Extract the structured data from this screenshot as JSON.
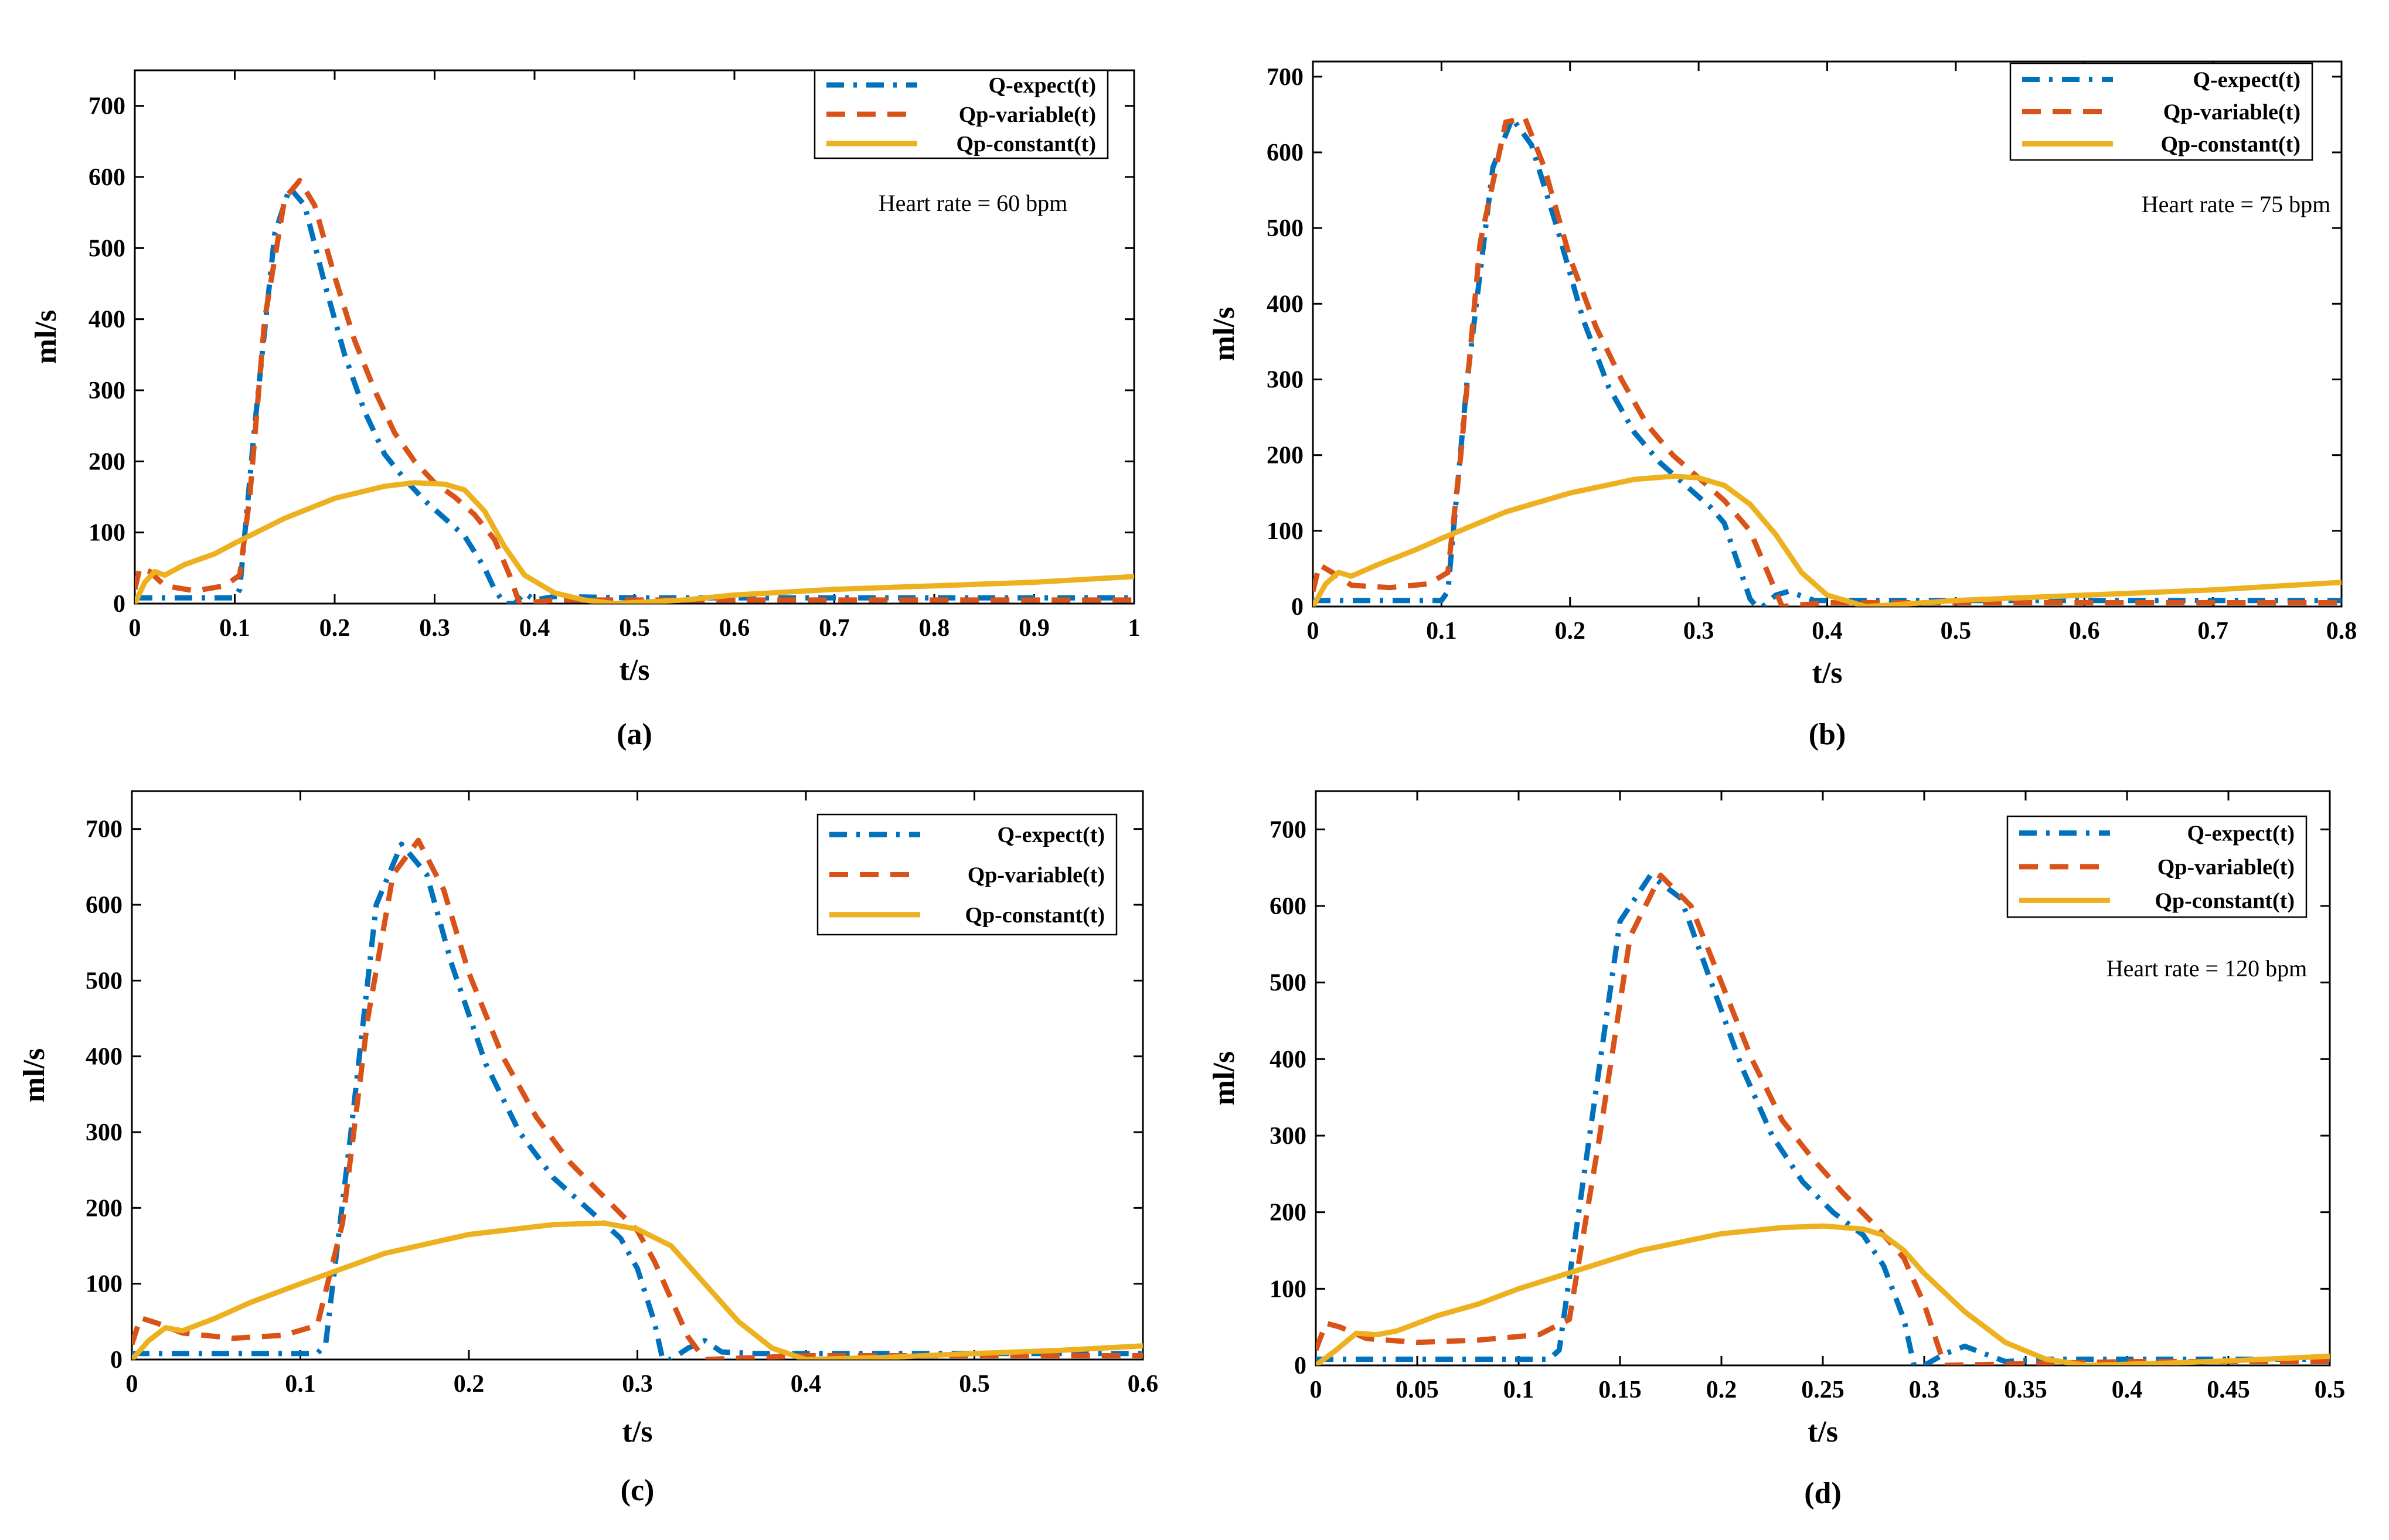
{
  "colors": {
    "q_expect": "#0072BD",
    "qp_variable": "#D95319",
    "qp_constant": "#EDB120"
  },
  "chart_data": [
    {
      "type": "line",
      "caption": "(a)",
      "xlabel": "t/s",
      "ylabel": "ml/s",
      "annotation": "Heart rate = 60 bpm",
      "xlim": [
        0,
        1
      ],
      "ylim": [
        0,
        750
      ],
      "xticks": [
        0,
        0.1,
        0.2,
        0.3,
        0.4,
        0.5,
        0.6,
        0.7,
        0.8,
        0.9,
        1
      ],
      "xtick_labels": [
        "0",
        "0.1",
        "0.2",
        "0.3",
        "0.4",
        "0.5",
        "0.6",
        "0.7",
        "0.8",
        "0.9",
        "1"
      ],
      "yticks": [
        0,
        100,
        200,
        300,
        400,
        500,
        600,
        700
      ],
      "ytick_labels": [
        "0",
        "100",
        "200",
        "300",
        "400",
        "500",
        "600",
        "700"
      ],
      "legend_position": "top-right",
      "series": [
        {
          "name": "Q-expect(t)",
          "style": "dashdot",
          "color_key": "q_expect",
          "x": [
            0,
            0.1,
            0.105,
            0.12,
            0.14,
            0.155,
            0.17,
            0.19,
            0.21,
            0.23,
            0.25,
            0.27,
            0.29,
            0.31,
            0.33,
            0.35,
            0.36,
            0.37,
            0.38,
            0.39,
            0.4,
            0.42,
            0.5,
            0.6,
            0.7,
            0.8,
            0.9,
            1.0
          ],
          "y": [
            8,
            8,
            20,
            250,
            520,
            585,
            560,
            450,
            350,
            270,
            210,
            175,
            145,
            120,
            95,
            50,
            20,
            0,
            0,
            15,
            5,
            10,
            8,
            8,
            8,
            8,
            8,
            8
          ]
        },
        {
          "name": "Qp-variable(t)",
          "style": "dashed",
          "color_key": "qp_variable",
          "x": [
            0,
            0.005,
            0.015,
            0.03,
            0.06,
            0.09,
            0.105,
            0.115,
            0.13,
            0.15,
            0.165,
            0.18,
            0.2,
            0.22,
            0.24,
            0.26,
            0.28,
            0.3,
            0.32,
            0.34,
            0.36,
            0.375,
            0.385,
            0.42,
            0.5,
            0.6,
            0.7,
            0.8,
            0.9,
            1.0
          ],
          "y": [
            20,
            50,
            45,
            25,
            18,
            25,
            40,
            150,
            400,
            570,
            595,
            560,
            460,
            370,
            300,
            240,
            200,
            170,
            150,
            125,
            90,
            40,
            0,
            5,
            5,
            5,
            5,
            5,
            5,
            5
          ]
        },
        {
          "name": "Qp-constant(t)",
          "style": "solid",
          "color_key": "qp_constant",
          "x": [
            0,
            0.01,
            0.02,
            0.03,
            0.05,
            0.08,
            0.1,
            0.15,
            0.2,
            0.25,
            0.28,
            0.31,
            0.33,
            0.35,
            0.37,
            0.39,
            0.42,
            0.45,
            0.48,
            0.55,
            0.6,
            0.7,
            0.8,
            0.9,
            1.0
          ],
          "y": [
            0,
            30,
            45,
            40,
            55,
            70,
            85,
            120,
            148,
            165,
            170,
            168,
            160,
            130,
            80,
            40,
            15,
            5,
            0,
            5,
            12,
            20,
            25,
            30,
            38
          ]
        }
      ]
    },
    {
      "type": "line",
      "caption": "(b)",
      "xlabel": "t/s",
      "ylabel": "ml/s",
      "annotation": "Heart rate = 75 bpm",
      "xlim": [
        0,
        0.8
      ],
      "ylim": [
        0,
        720
      ],
      "xticks": [
        0,
        0.1,
        0.2,
        0.3,
        0.4,
        0.5,
        0.6,
        0.7,
        0.8
      ],
      "xtick_labels": [
        "0",
        "0.1",
        "0.2",
        "0.3",
        "0.4",
        "0.5",
        "0.6",
        "0.7",
        "0.8"
      ],
      "yticks": [
        0,
        100,
        200,
        300,
        400,
        500,
        600,
        700
      ],
      "ytick_labels": [
        "0",
        "100",
        "200",
        "300",
        "400",
        "500",
        "600",
        "700"
      ],
      "legend_position": "top-right",
      "series": [
        {
          "name": "Q-expect(t)",
          "style": "dashdot",
          "color_key": "q_expect",
          "x": [
            0,
            0.1,
            0.105,
            0.12,
            0.14,
            0.155,
            0.17,
            0.19,
            0.21,
            0.23,
            0.25,
            0.27,
            0.29,
            0.31,
            0.32,
            0.33,
            0.34,
            0.345,
            0.35,
            0.36,
            0.37,
            0.39,
            0.5,
            0.6,
            0.7,
            0.8
          ],
          "y": [
            8,
            8,
            20,
            300,
            580,
            645,
            610,
            500,
            380,
            290,
            230,
            190,
            160,
            130,
            110,
            60,
            10,
            0,
            0,
            15,
            20,
            8,
            8,
            8,
            8,
            8
          ]
        },
        {
          "name": "Qp-variable(t)",
          "style": "dashed",
          "color_key": "qp_variable",
          "x": [
            0,
            0.005,
            0.015,
            0.03,
            0.06,
            0.09,
            0.105,
            0.115,
            0.13,
            0.15,
            0.165,
            0.18,
            0.2,
            0.22,
            0.24,
            0.26,
            0.28,
            0.3,
            0.32,
            0.34,
            0.355,
            0.365,
            0.4,
            0.5,
            0.6,
            0.7,
            0.8
          ],
          "y": [
            20,
            55,
            45,
            28,
            25,
            30,
            45,
            200,
            480,
            640,
            645,
            580,
            460,
            370,
            300,
            240,
            200,
            170,
            140,
            100,
            40,
            0,
            5,
            5,
            5,
            5,
            5
          ]
        },
        {
          "name": "Qp-constant(t)",
          "style": "solid",
          "color_key": "qp_constant",
          "x": [
            0,
            0.01,
            0.02,
            0.03,
            0.05,
            0.08,
            0.1,
            0.15,
            0.2,
            0.25,
            0.28,
            0.3,
            0.32,
            0.34,
            0.36,
            0.38,
            0.4,
            0.43,
            0.45,
            0.5,
            0.6,
            0.7,
            0.8
          ],
          "y": [
            0,
            30,
            45,
            40,
            55,
            75,
            90,
            125,
            150,
            168,
            172,
            170,
            160,
            135,
            95,
            45,
            15,
            0,
            2,
            8,
            15,
            22,
            32
          ]
        }
      ]
    },
    {
      "type": "line",
      "caption": "(c)",
      "xlabel": "t/s",
      "ylabel": "ml/s",
      "annotation": "",
      "xlim": [
        0,
        0.6
      ],
      "ylim": [
        0,
        750
      ],
      "xticks": [
        0,
        0.1,
        0.2,
        0.3,
        0.4,
        0.5,
        0.6
      ],
      "xtick_labels": [
        "0",
        "0.1",
        "0.2",
        "0.3",
        "0.4",
        "0.5",
        "0.6"
      ],
      "yticks": [
        0,
        100,
        200,
        300,
        400,
        500,
        600,
        700
      ],
      "ytick_labels": [
        "0",
        "100",
        "200",
        "300",
        "400",
        "500",
        "600",
        "700"
      ],
      "legend_position": "top-right",
      "series": [
        {
          "name": "Q-expect(t)",
          "style": "dashdot",
          "color_key": "q_expect",
          "x": [
            0,
            0.11,
            0.115,
            0.13,
            0.145,
            0.16,
            0.175,
            0.19,
            0.21,
            0.23,
            0.25,
            0.27,
            0.29,
            0.3,
            0.31,
            0.315,
            0.32,
            0.33,
            0.34,
            0.35,
            0.37,
            0.4,
            0.5,
            0.6
          ],
          "y": [
            8,
            8,
            20,
            300,
            600,
            680,
            640,
            520,
            390,
            300,
            240,
            200,
            160,
            120,
            50,
            0,
            0,
            15,
            25,
            10,
            8,
            8,
            8,
            8
          ]
        },
        {
          "name": "Qp-variable(t)",
          "style": "dashed",
          "color_key": "qp_variable",
          "x": [
            0,
            0.005,
            0.015,
            0.03,
            0.06,
            0.09,
            0.11,
            0.125,
            0.14,
            0.155,
            0.17,
            0.185,
            0.2,
            0.22,
            0.24,
            0.26,
            0.28,
            0.3,
            0.31,
            0.32,
            0.33,
            0.34,
            0.4,
            0.5,
            0.6
          ],
          "y": [
            20,
            55,
            48,
            35,
            28,
            32,
            45,
            180,
            450,
            640,
            685,
            620,
            510,
            400,
            320,
            260,
            215,
            170,
            130,
            80,
            30,
            0,
            5,
            5,
            5
          ]
        },
        {
          "name": "Qp-constant(t)",
          "style": "solid",
          "color_key": "qp_constant",
          "x": [
            0,
            0.01,
            0.02,
            0.03,
            0.05,
            0.07,
            0.1,
            0.15,
            0.2,
            0.25,
            0.28,
            0.3,
            0.32,
            0.34,
            0.36,
            0.38,
            0.4,
            0.45,
            0.5,
            0.55,
            0.6
          ],
          "y": [
            0,
            25,
            42,
            38,
            55,
            75,
            100,
            140,
            165,
            178,
            180,
            172,
            150,
            100,
            50,
            15,
            0,
            3,
            8,
            12,
            18
          ]
        }
      ]
    },
    {
      "type": "line",
      "caption": "(d)",
      "xlabel": "t/s",
      "ylabel": "ml/s",
      "annotation": "Heart rate = 120 bpm",
      "xlim": [
        0,
        0.5
      ],
      "ylim": [
        0,
        750
      ],
      "xticks": [
        0,
        0.05,
        0.1,
        0.15,
        0.2,
        0.25,
        0.3,
        0.35,
        0.4,
        0.45,
        0.5
      ],
      "xtick_labels": [
        "0",
        "0.05",
        "0.1",
        "0.15",
        "0.2",
        "0.25",
        "0.3",
        "0.35",
        "0.4",
        "0.45",
        "0.5"
      ],
      "yticks": [
        0,
        100,
        200,
        300,
        400,
        500,
        600,
        700
      ],
      "ytick_labels": [
        "0",
        "100",
        "200",
        "300",
        "400",
        "500",
        "600",
        "700"
      ],
      "legend_position": "top-right",
      "series": [
        {
          "name": "Q-expect(t)",
          "style": "dashdot",
          "color_key": "q_expect",
          "x": [
            0,
            0.115,
            0.12,
            0.135,
            0.15,
            0.165,
            0.18,
            0.195,
            0.21,
            0.225,
            0.24,
            0.255,
            0.27,
            0.28,
            0.29,
            0.295,
            0.3,
            0.31,
            0.32,
            0.33,
            0.34,
            0.36,
            0.4,
            0.5
          ],
          "y": [
            8,
            8,
            20,
            300,
            580,
            640,
            610,
            500,
            390,
            300,
            240,
            200,
            170,
            130,
            60,
            0,
            0,
            15,
            25,
            15,
            5,
            8,
            8,
            8
          ]
        },
        {
          "name": "Qp-variable(t)",
          "style": "dashed",
          "color_key": "qp_variable",
          "x": [
            0,
            0.005,
            0.012,
            0.025,
            0.05,
            0.08,
            0.11,
            0.125,
            0.14,
            0.155,
            0.17,
            0.185,
            0.2,
            0.215,
            0.23,
            0.245,
            0.26,
            0.275,
            0.29,
            0.3,
            0.31,
            0.4,
            0.5
          ],
          "y": [
            20,
            55,
            50,
            35,
            30,
            33,
            40,
            60,
            300,
            560,
            640,
            600,
            500,
            400,
            320,
            270,
            225,
            185,
            140,
            80,
            0,
            5,
            5
          ]
        },
        {
          "name": "Qp-constant(t)",
          "style": "solid",
          "color_key": "qp_constant",
          "x": [
            0,
            0.01,
            0.02,
            0.03,
            0.04,
            0.06,
            0.08,
            0.1,
            0.13,
            0.16,
            0.2,
            0.23,
            0.25,
            0.27,
            0.28,
            0.29,
            0.3,
            0.32,
            0.34,
            0.36,
            0.38,
            0.42,
            0.46,
            0.5
          ],
          "y": [
            0,
            20,
            42,
            40,
            45,
            65,
            80,
            100,
            125,
            150,
            172,
            180,
            182,
            178,
            170,
            150,
            120,
            70,
            30,
            8,
            0,
            3,
            7,
            12
          ]
        }
      ]
    }
  ]
}
